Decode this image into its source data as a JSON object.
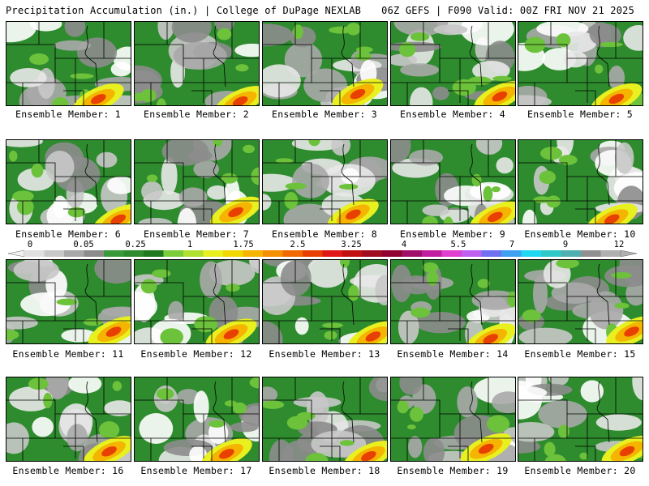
{
  "header": {
    "title": "Precipitation Accumulation (in.) | College of DuPage NEXLAB",
    "run_info": "06Z GEFS | F090 Valid: 00Z FRI NOV 21 2025"
  },
  "panels": [
    {
      "caption": "Ensemble Member: 1"
    },
    {
      "caption": "Ensemble Member: 2"
    },
    {
      "caption": "Ensemble Member: 3"
    },
    {
      "caption": "Ensemble Member: 4"
    },
    {
      "caption": "Ensemble Member: 5"
    },
    {
      "caption": "Ensemble Member: 6"
    },
    {
      "caption": "Ensemble Member: 7"
    },
    {
      "caption": "Ensemble Member: 8"
    },
    {
      "caption": "Ensemble Member: 9"
    },
    {
      "caption": "Ensemble Member: 10"
    },
    {
      "caption": "Ensemble Member: 11"
    },
    {
      "caption": "Ensemble Member: 12"
    },
    {
      "caption": "Ensemble Member: 13"
    },
    {
      "caption": "Ensemble Member: 14"
    },
    {
      "caption": "Ensemble Member: 15"
    },
    {
      "caption": "Ensemble Member: 16"
    },
    {
      "caption": "Ensemble Member: 17"
    },
    {
      "caption": "Ensemble Member: 18"
    },
    {
      "caption": "Ensemble Member: 19"
    },
    {
      "caption": "Ensemble Member: 20"
    }
  ],
  "colorbar": {
    "labels": [
      "0",
      "0.05",
      "0.25",
      "1",
      "1.75",
      "2.5",
      "3.25",
      "4",
      "5.5",
      "7",
      "9",
      "12"
    ],
    "colors": [
      "#e0e0e0",
      "#c8c8c8",
      "#a8a8a8",
      "#8c8c8c",
      "#3a9a3a",
      "#2e8b2e",
      "#1f7a1f",
      "#7ccd3a",
      "#b0e030",
      "#e8f020",
      "#f0d800",
      "#f5b400",
      "#f59000",
      "#f06a00",
      "#e84000",
      "#e01818",
      "#c01010",
      "#a00c20",
      "#900030",
      "#a0106a",
      "#c020a0",
      "#e040d0",
      "#c060f0",
      "#7070f0",
      "#40a0f0",
      "#20d8f0",
      "#30c8c8",
      "#50b0b0",
      "#909090",
      "#b0b0b0"
    ]
  }
}
